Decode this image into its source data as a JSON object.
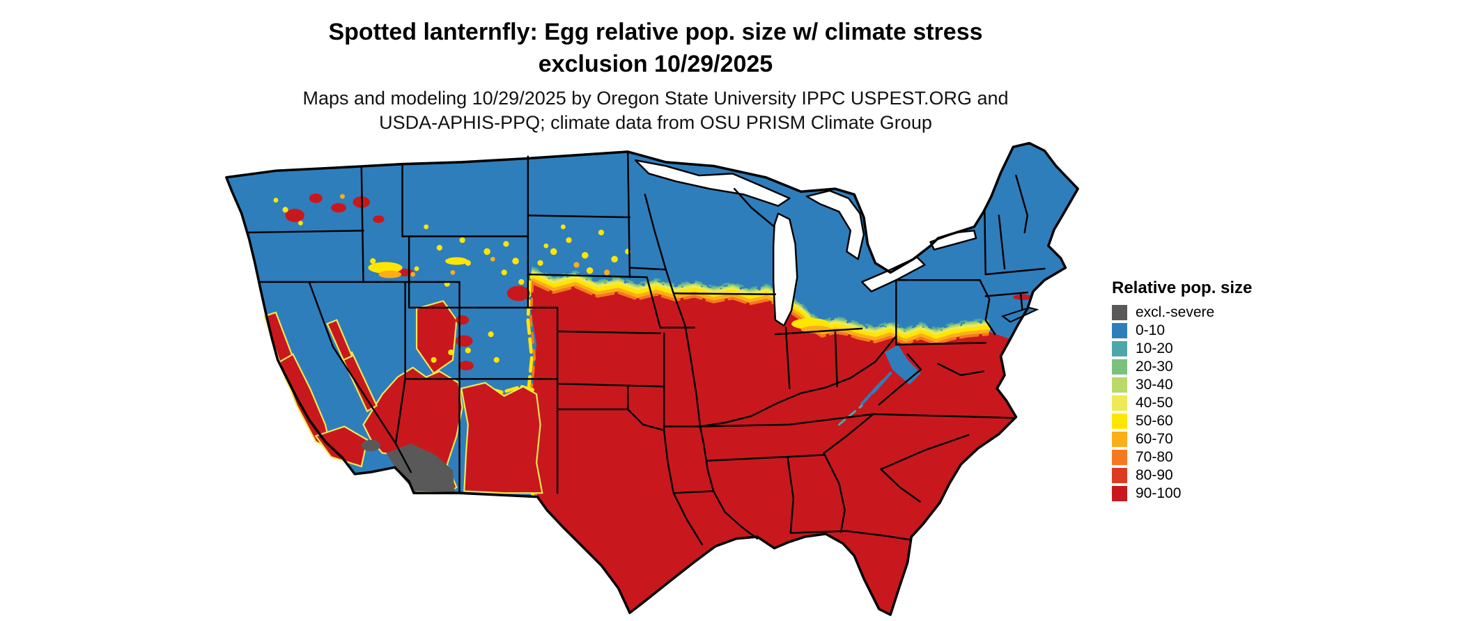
{
  "title": {
    "line1": "Spotted lanternfly: Egg relative pop. size w/ climate stress",
    "line2": "exclusion 10/29/2025"
  },
  "subtitle": {
    "line1": "Maps and modeling 10/29/2025 by Oregon State University IPPC USPEST.ORG and",
    "line2": "USDA-APHIS-PPQ; climate data from OSU PRISM Climate Group"
  },
  "legend": {
    "title": "Relative pop. size",
    "items": [
      {
        "label": "excl.-severe",
        "color": "#595959"
      },
      {
        "label": "0-10",
        "color": "#2f7ebc"
      },
      {
        "label": "10-20",
        "color": "#4da7a8"
      },
      {
        "label": "20-30",
        "color": "#7cc07f"
      },
      {
        "label": "30-40",
        "color": "#b9d96a"
      },
      {
        "label": "40-50",
        "color": "#efe955"
      },
      {
        "label": "50-60",
        "color": "#ffe600"
      },
      {
        "label": "60-70",
        "color": "#fbae17"
      },
      {
        "label": "70-80",
        "color": "#f4791f"
      },
      {
        "label": "80-90",
        "color": "#dd3b21"
      },
      {
        "label": "90-100",
        "color": "#c9181d"
      }
    ]
  },
  "colors": {
    "gray": "#595959",
    "blue": "#2f7ebc",
    "teal": "#4da7a8",
    "green": "#7cc07f",
    "yellowgreen": "#b9d96a",
    "paleyellow": "#efe955",
    "yellow": "#ffe600",
    "amber": "#fbae17",
    "orange": "#f4791f",
    "redorange": "#dd3b21",
    "red": "#c9181d",
    "water": "#ffffff",
    "border": "#000000",
    "background": "#ffffff"
  }
}
